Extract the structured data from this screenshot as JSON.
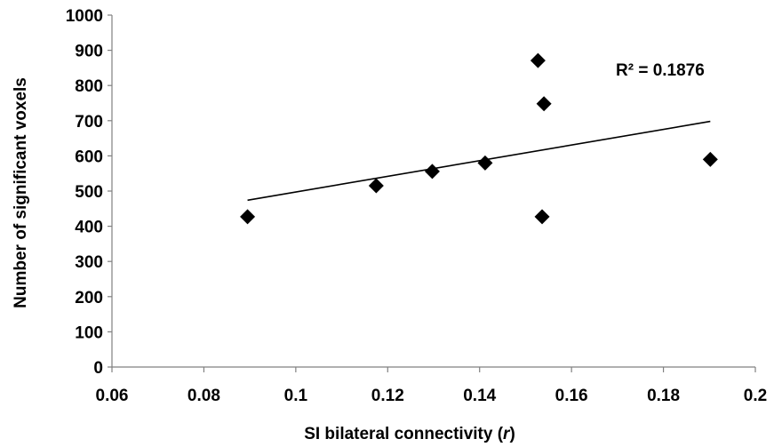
{
  "chart_data": {
    "type": "scatter",
    "title": "",
    "xlabel": "SI bilateral connectivity (",
    "xlabel_var": "r",
    "xlabel_end": ")",
    "ylabel": "Number of significant voxels",
    "xlim": [
      0.06,
      0.2
    ],
    "ylim": [
      0,
      1000
    ],
    "xticks": [
      0.06,
      0.08,
      0.1,
      0.12,
      0.14,
      0.16,
      0.18,
      0.2
    ],
    "xtick_labels": [
      "0.06",
      "0.08",
      "0.1",
      "0.12",
      "0.14",
      "0.16",
      "0.18",
      "0.2"
    ],
    "yticks": [
      0,
      100,
      200,
      300,
      400,
      500,
      600,
      700,
      800,
      900,
      1000
    ],
    "ytick_labels": [
      "0",
      "100",
      "200",
      "300",
      "400",
      "500",
      "600",
      "700",
      "800",
      "900",
      "1000"
    ],
    "grid": false,
    "marker": "diamond",
    "marker_color": "#000000",
    "points": [
      {
        "x": 0.0895,
        "y": 427
      },
      {
        "x": 0.1175,
        "y": 515
      },
      {
        "x": 0.1297,
        "y": 556
      },
      {
        "x": 0.1412,
        "y": 580
      },
      {
        "x": 0.1527,
        "y": 871
      },
      {
        "x": 0.154,
        "y": 748
      },
      {
        "x": 0.1536,
        "y": 427
      },
      {
        "x": 0.1902,
        "y": 590
      }
    ],
    "trendline": {
      "x": [
        0.0895,
        0.1902
      ],
      "y": [
        474,
        698
      ]
    },
    "annotation": "R² = 0.1876"
  }
}
